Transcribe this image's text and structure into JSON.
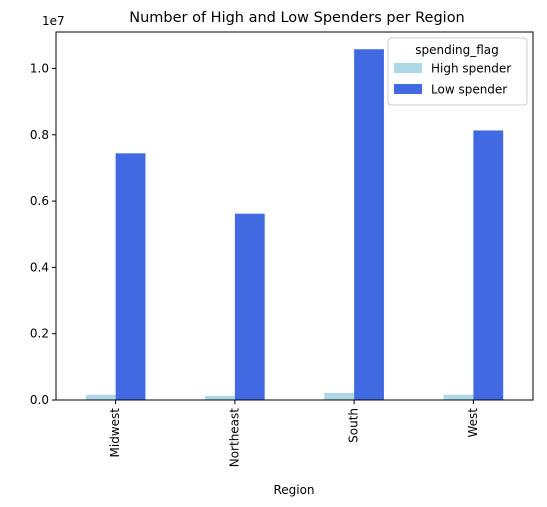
{
  "chart_data": {
    "type": "bar",
    "title": "Number of High and Low Spenders per Region",
    "xlabel": "Region",
    "ylabel": "",
    "scale_label": "1e7",
    "categories": [
      "Midwest",
      "Northeast",
      "South",
      "West"
    ],
    "series": [
      {
        "name": "High spender",
        "color": "#add8e6",
        "values": [
          155000,
          125000,
          210000,
          160000
        ]
      },
      {
        "name": "Low spender",
        "color": "#4169e1",
        "values": [
          7440000,
          5620000,
          10580000,
          8130000
        ]
      }
    ],
    "ylim": [
      0,
      11100000
    ],
    "yticks": [
      {
        "value": 0,
        "label": "0.0"
      },
      {
        "value": 2000000,
        "label": "0.2"
      },
      {
        "value": 4000000,
        "label": "0.4"
      },
      {
        "value": 6000000,
        "label": "0.6"
      },
      {
        "value": 8000000,
        "label": "0.8"
      },
      {
        "value": 10000000,
        "label": "1.0"
      }
    ],
    "legend": {
      "title": "spending_flag",
      "position": "top-right"
    },
    "grid": false
  }
}
